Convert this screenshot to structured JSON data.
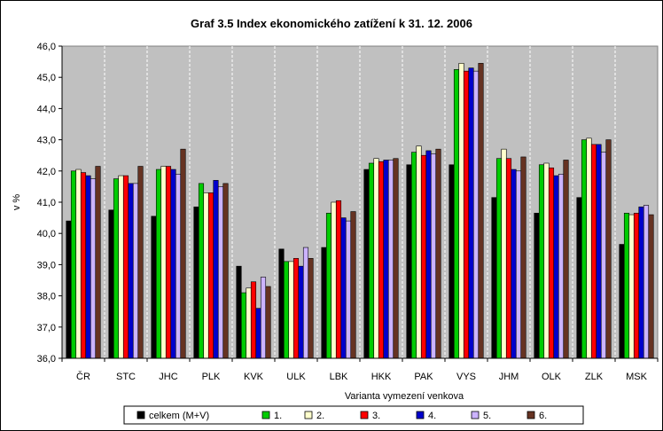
{
  "chart_data": {
    "type": "bar",
    "title": "Graf 3.5 Index ekonomického zatížení k 31. 12. 2006",
    "xlabel": "Varianta vymezení venkova",
    "ylabel": "v %",
    "ylim": [
      36,
      46
    ],
    "yticks": [
      "36,0",
      "37,0",
      "38,0",
      "39,0",
      "40,0",
      "41,0",
      "42,0",
      "43,0",
      "44,0",
      "45,0",
      "46,0"
    ],
    "grid": "vertical dashed",
    "legend_position": "bottom",
    "plot_background": "#c0c0c0",
    "categories": [
      "ČR",
      "STC",
      "JHC",
      "PLK",
      "KVK",
      "ULK",
      "LBK",
      "HKK",
      "PAK",
      "VYS",
      "JHM",
      "OLK",
      "ZLK",
      "MSK"
    ],
    "series": [
      {
        "name": "celkem (M+V)",
        "color": "#000000",
        "values": [
          40.4,
          40.75,
          40.55,
          40.85,
          38.95,
          39.5,
          39.55,
          42.05,
          42.2,
          42.2,
          41.15,
          40.65,
          41.15,
          39.65
        ]
      },
      {
        "name": "1.",
        "color": "#00cc00",
        "values": [
          42.0,
          41.75,
          42.05,
          41.6,
          38.1,
          39.1,
          40.65,
          42.25,
          42.6,
          45.25,
          42.4,
          42.2,
          43.0,
          40.65
        ]
      },
      {
        "name": "2.",
        "color": "#ffffcc",
        "values": [
          42.05,
          41.85,
          42.15,
          41.3,
          38.25,
          39.1,
          41.0,
          42.4,
          42.8,
          45.45,
          42.7,
          42.25,
          43.05,
          40.6
        ]
      },
      {
        "name": "3.",
        "color": "#ff0000",
        "values": [
          41.95,
          41.85,
          42.15,
          41.3,
          38.45,
          39.2,
          41.05,
          42.3,
          42.5,
          45.2,
          42.4,
          42.1,
          42.85,
          40.65
        ]
      },
      {
        "name": "4.",
        "color": "#0000cc",
        "values": [
          41.85,
          41.6,
          42.05,
          41.7,
          37.6,
          38.95,
          40.5,
          42.35,
          42.65,
          45.3,
          42.05,
          41.85,
          42.85,
          40.85
        ]
      },
      {
        "name": "5.",
        "color": "#ccb3ff",
        "values": [
          41.75,
          41.6,
          41.9,
          41.5,
          38.6,
          39.55,
          40.4,
          42.35,
          42.55,
          45.2,
          42.0,
          41.9,
          42.6,
          40.9
        ]
      },
      {
        "name": "6.",
        "color": "#663322",
        "values": [
          42.15,
          42.15,
          42.7,
          41.6,
          38.3,
          39.2,
          40.7,
          42.4,
          42.7,
          45.45,
          42.45,
          42.35,
          43.0,
          40.6
        ]
      }
    ]
  }
}
